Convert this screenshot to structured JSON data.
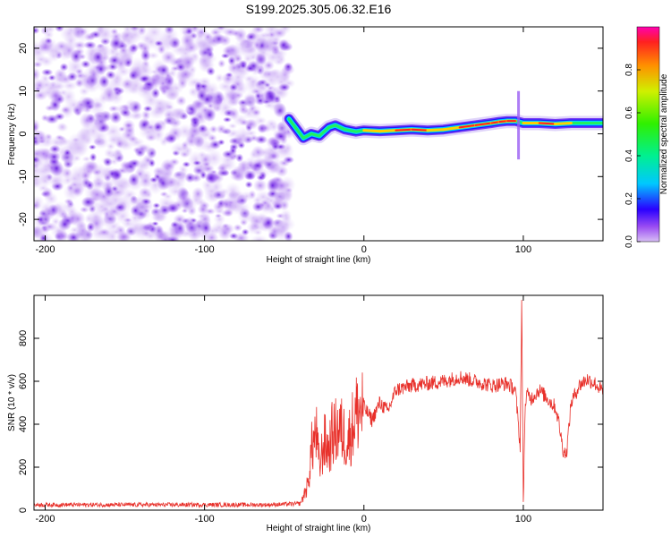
{
  "title": "S199.2025.305.06.32.E16",
  "chart_data": [
    {
      "type": "heatmap",
      "xlabel": "Height of straight line (km)",
      "ylabel": "Frequency (Hz)",
      "xlim": [
        -207,
        150
      ],
      "ylim": [
        -25,
        25
      ],
      "xticks": [
        -200,
        -100,
        0,
        100
      ],
      "yticks": [
        -20,
        -10,
        0,
        10,
        20
      ],
      "grid": false,
      "noise_region_x": [
        -207,
        -47
      ],
      "signal_ridge": {
        "x": [
          -47,
          -42,
          -38,
          -33,
          -28,
          -22,
          -18,
          -12,
          -5,
          0,
          10,
          20,
          30,
          40,
          50,
          60,
          70,
          80,
          85,
          90,
          95,
          100,
          110,
          120,
          130,
          140,
          150
        ],
        "frequency_hz": [
          3.5,
          1.0,
          -1.0,
          0.0,
          -0.5,
          1.5,
          2.0,
          1.0,
          0.5,
          0.8,
          0.6,
          0.8,
          1.0,
          0.8,
          1.0,
          1.5,
          2.0,
          2.5,
          2.8,
          3.0,
          3.0,
          2.5,
          2.5,
          2.3,
          2.5,
          2.5,
          2.5
        ],
        "amplitude": [
          0.3,
          0.35,
          0.4,
          0.45,
          0.4,
          0.55,
          0.6,
          0.6,
          0.65,
          0.8,
          0.85,
          0.9,
          0.95,
          0.95,
          0.85,
          0.9,
          0.95,
          1.0,
          1.0,
          1.0,
          0.85,
          0.7,
          0.95,
          1.0,
          0.75,
          0.55,
          0.45
        ]
      },
      "colorbar": {
        "label": "Normalized spectral amplitude",
        "range": [
          0,
          1
        ],
        "ticks": [
          0.0,
          0.2,
          0.4,
          0.6,
          0.8
        ]
      }
    },
    {
      "type": "line",
      "xlabel": "Height of straight line (km)",
      "ylabel": "SNR (10 * v/v)",
      "xlim": [
        -207,
        150
      ],
      "ylim": [
        0,
        1000
      ],
      "xticks": [
        -200,
        -100,
        0,
        100
      ],
      "yticks": [
        0,
        200,
        400,
        600,
        800
      ],
      "grid": false,
      "series": [
        {
          "name": "SNR",
          "color": "#e8302a",
          "x": [
            -207,
            -180,
            -150,
            -120,
            -90,
            -60,
            -40,
            -35,
            -33,
            -30,
            -28,
            -25,
            -22,
            -20,
            -15,
            -10,
            -5,
            0,
            5,
            10,
            15,
            20,
            30,
            40,
            50,
            60,
            70,
            80,
            90,
            95,
            98,
            99,
            100,
            101,
            102,
            105,
            110,
            115,
            120,
            122,
            125,
            127,
            130,
            135,
            140,
            145,
            150
          ],
          "y": [
            25,
            25,
            25,
            25,
            25,
            25,
            30,
            120,
            280,
            360,
            200,
            320,
            280,
            350,
            380,
            320,
            450,
            480,
            420,
            500,
            460,
            560,
            580,
            590,
            600,
            620,
            600,
            580,
            590,
            560,
            300,
            980,
            30,
            450,
            540,
            520,
            560,
            520,
            480,
            420,
            280,
            260,
            500,
            580,
            610,
            590,
            550
          ]
        }
      ]
    }
  ]
}
